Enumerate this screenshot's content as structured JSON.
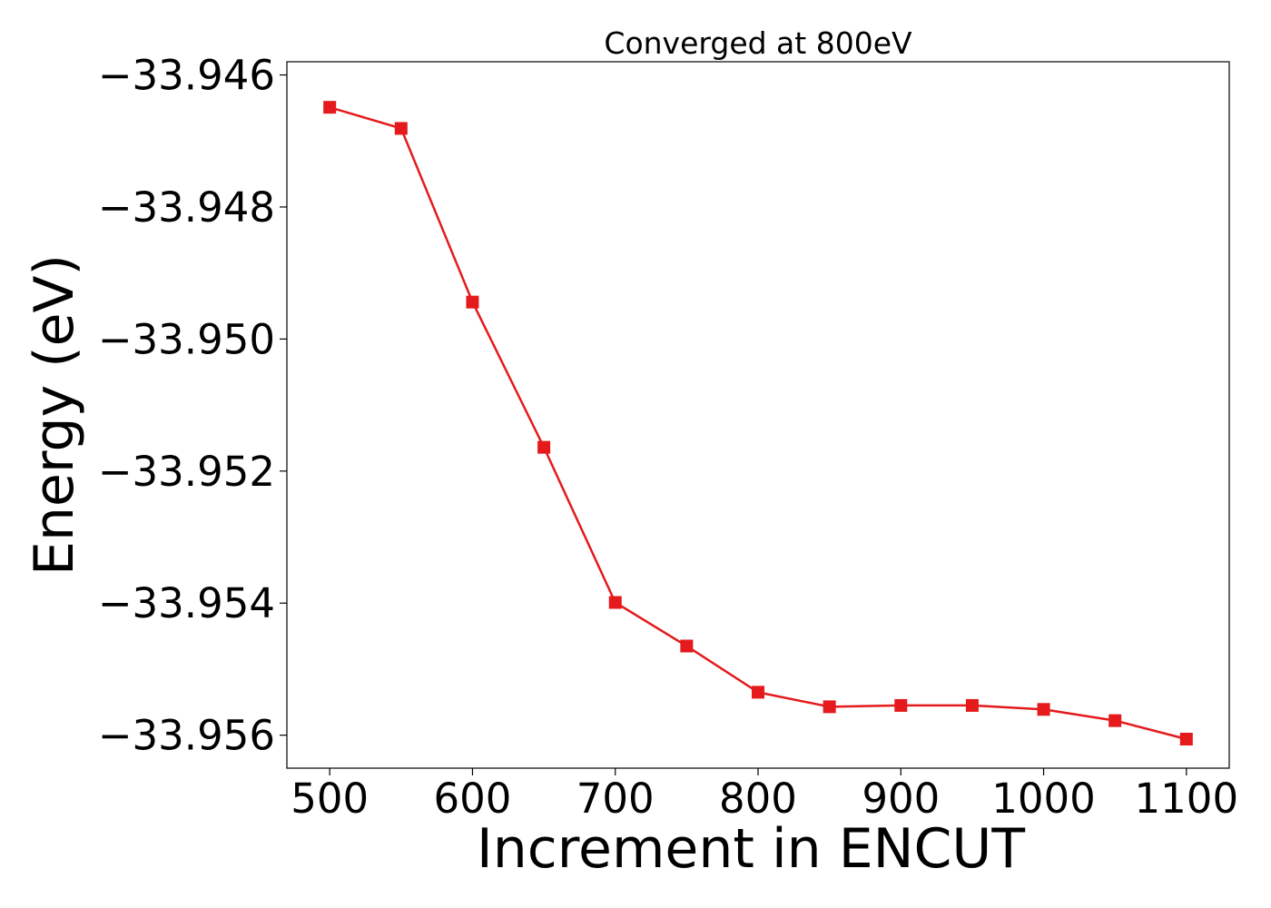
{
  "chart_data": {
    "type": "line",
    "title": "Converged at 800eV",
    "xlabel": "Increment in ENCUT",
    "ylabel": "Energy (eV)",
    "xlim": [
      470,
      1130
    ],
    "ylim": [
      -33.9565,
      -33.9458
    ],
    "xticks": [
      500,
      600,
      700,
      800,
      900,
      1000,
      1100
    ],
    "xtick_labels": [
      "500",
      "600",
      "700",
      "800",
      "900",
      "1000",
      "1100"
    ],
    "yticks": [
      -33.946,
      -33.948,
      -33.95,
      -33.952,
      -33.954,
      -33.956
    ],
    "ytick_labels": [
      "−33.946",
      "−33.948",
      "−33.950",
      "−33.952",
      "−33.954",
      "−33.956"
    ],
    "grid": false,
    "series": [
      {
        "color": "#e41a1c",
        "marker": "square",
        "x": [
          500,
          550,
          600,
          650,
          700,
          750,
          800,
          850,
          900,
          950,
          1000,
          1050,
          1100
        ],
        "y": [
          -33.94649,
          -33.94681,
          -33.94944,
          -33.95164,
          -33.95399,
          -33.95465,
          -33.95535,
          -33.95557,
          -33.95555,
          -33.95555,
          -33.95561,
          -33.95578,
          -33.95606
        ]
      }
    ]
  }
}
